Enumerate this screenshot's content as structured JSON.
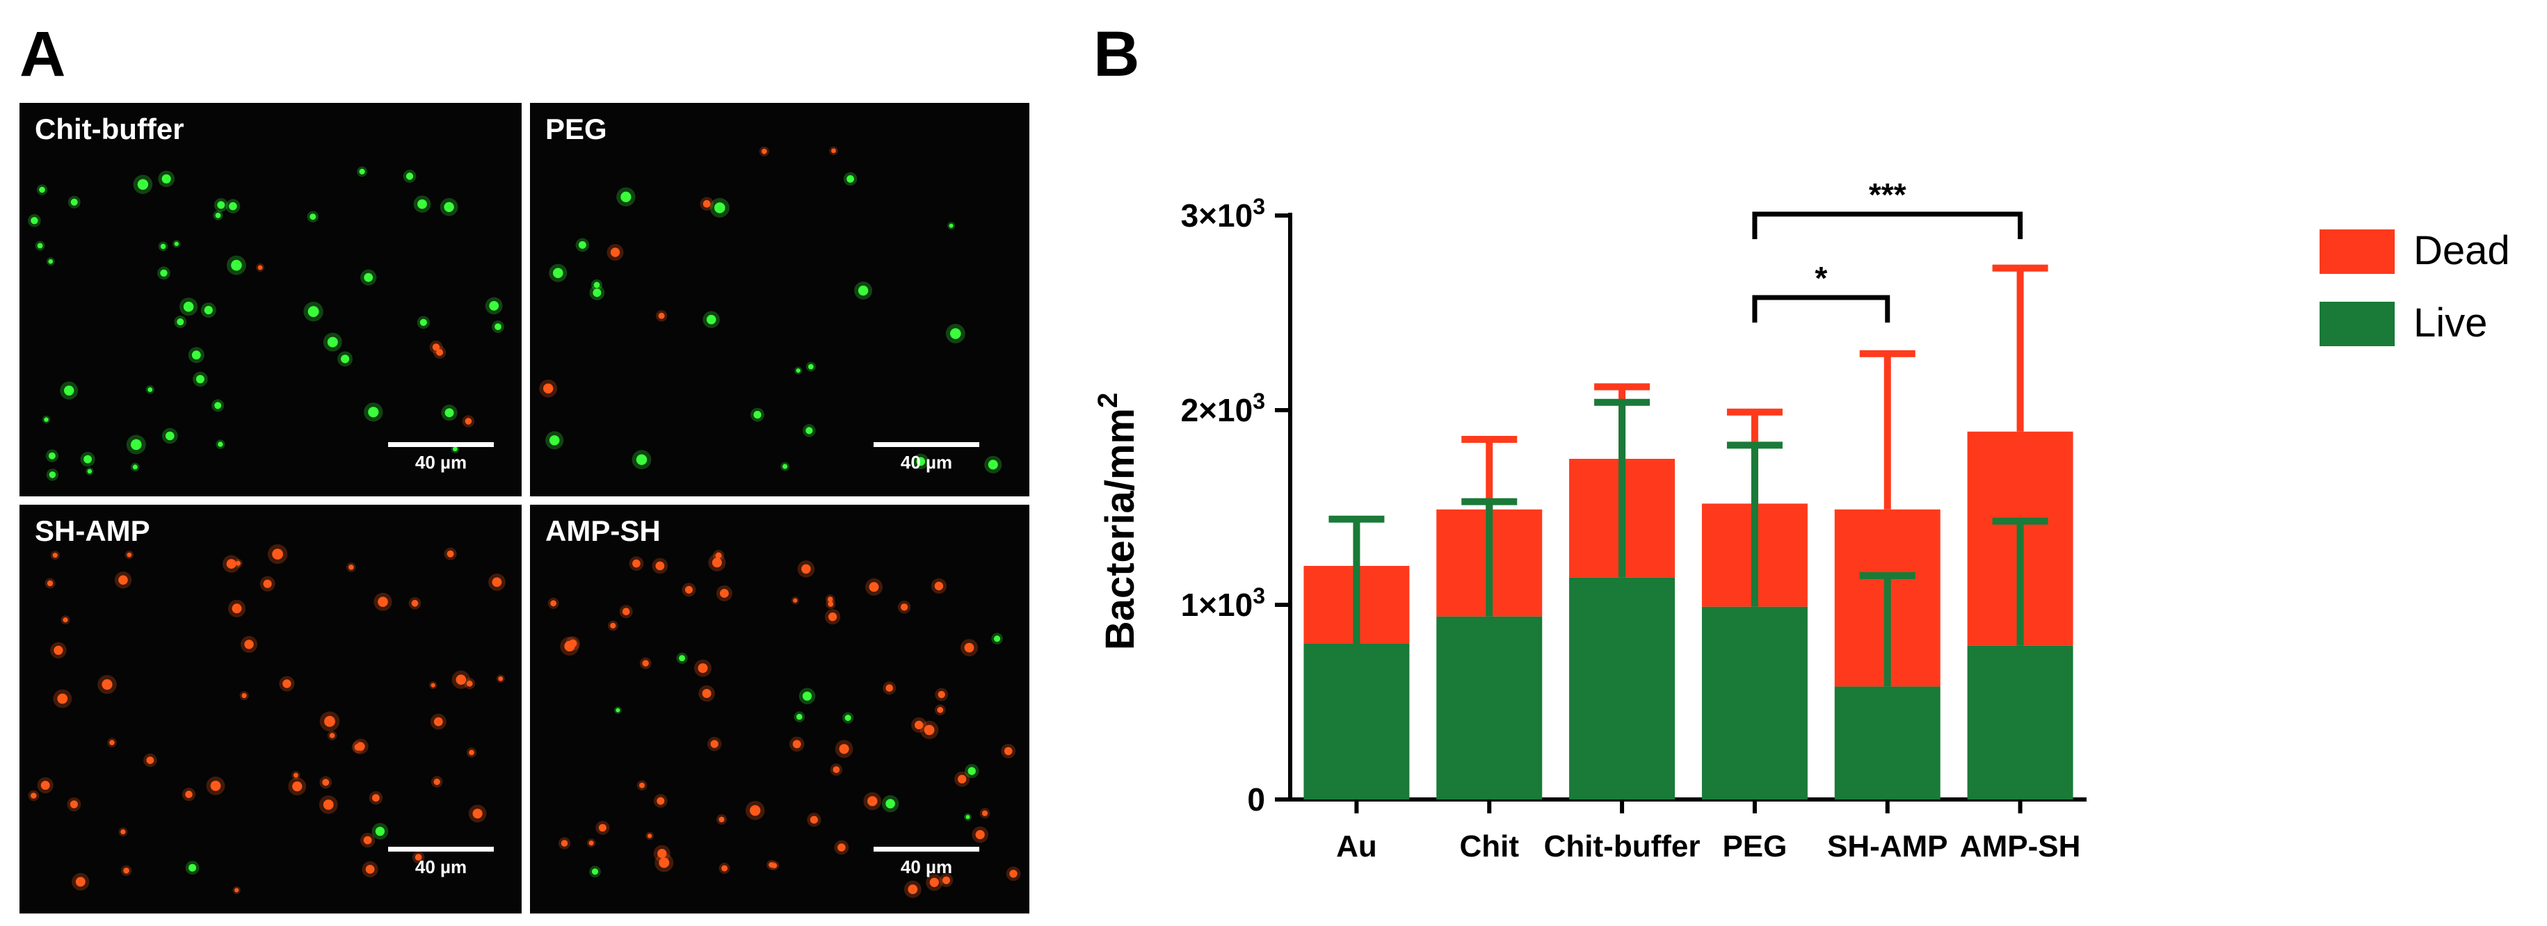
{
  "panel_a": {
    "letter": "A",
    "images": [
      {
        "label": "Chit-buffer",
        "scale": "40 µm",
        "dots": {
          "green": 46,
          "red": 4
        }
      },
      {
        "label": "PEG",
        "scale": "40 µm",
        "dots": {
          "green": 20,
          "red": 6
        }
      },
      {
        "label": "SH-AMP",
        "scale": "40 µm",
        "dots": {
          "green": 2,
          "red": 52
        }
      },
      {
        "label": "AMP-SH",
        "scale": "40 µm",
        "dots": {
          "green": 10,
          "red": 56
        }
      }
    ]
  },
  "panel_b": {
    "letter": "B"
  },
  "chart_data": {
    "type": "bar",
    "stacked": true,
    "categories": [
      "Au",
      "Chit",
      "Chit-buffer",
      "PEG",
      "SH-AMP",
      "AMP-SH"
    ],
    "series": [
      {
        "name": "Live",
        "color": "#1a7a38",
        "values": [
          800,
          940,
          1140,
          990,
          580,
          790
        ],
        "error": [
          640,
          590,
          900,
          830,
          570,
          640
        ]
      },
      {
        "name": "Dead",
        "color": "#ff3a1c",
        "values": [
          400,
          550,
          610,
          530,
          910,
          1100
        ],
        "error": [
          0,
          360,
          370,
          470,
          800,
          840
        ]
      }
    ],
    "ylabel": "Bacteria/mm",
    "ylabel_sup": "2",
    "ylim": [
      0,
      3000
    ],
    "yticks": [
      {
        "value": 0,
        "base": "0",
        "exp": ""
      },
      {
        "value": 1000,
        "base": "1×10",
        "exp": "3"
      },
      {
        "value": 2000,
        "base": "2×10",
        "exp": "3"
      },
      {
        "value": 3000,
        "base": "3×10",
        "exp": "3"
      }
    ],
    "legend": [
      "Dead",
      "Live"
    ],
    "legend_position": "right",
    "significance": [
      {
        "from": "PEG",
        "to": "SH-AMP",
        "label": "*"
      },
      {
        "from": "PEG",
        "to": "AMP-SH",
        "label": "***"
      }
    ]
  }
}
